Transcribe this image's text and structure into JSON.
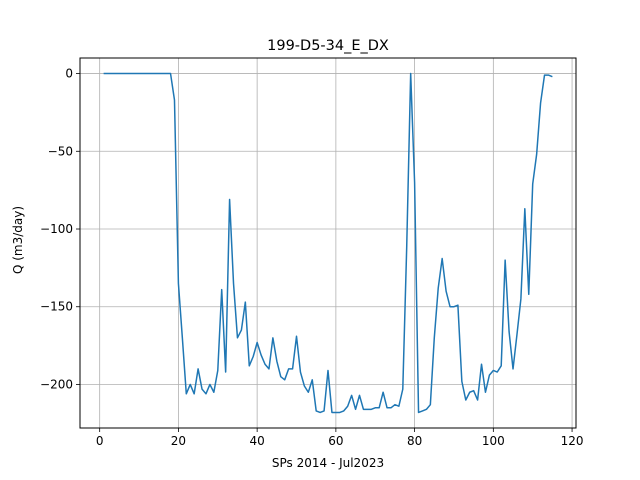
{
  "chart_data": {
    "type": "line",
    "title": "199-D5-34_E_DX",
    "xlabel": "SPs 2014 - Jul2023",
    "ylabel": "Q (m3/day)",
    "xlim": [
      -5,
      121
    ],
    "ylim": [
      -228,
      10
    ],
    "xticks": [
      0,
      20,
      40,
      60,
      80,
      100,
      120
    ],
    "yticks": [
      0,
      -50,
      -100,
      -150,
      -200
    ],
    "grid": true,
    "colors": {
      "line": "#1f77b4",
      "grid": "#b0b0b0"
    },
    "series": [
      {
        "x": [
          1,
          2,
          3,
          4,
          5,
          6,
          7,
          8,
          9,
          10,
          11,
          12,
          13,
          14,
          15,
          16,
          17,
          18,
          19,
          20,
          21,
          22,
          23,
          24,
          25,
          26,
          27,
          28,
          29,
          30,
          31,
          32,
          33,
          34,
          35,
          36,
          37,
          38,
          39,
          40,
          41,
          42,
          43,
          44,
          45,
          46,
          47,
          48,
          49,
          50,
          51,
          52,
          53,
          54,
          55,
          56,
          57,
          58,
          59,
          60,
          61,
          62,
          63,
          64,
          65,
          66,
          67,
          68,
          69,
          70,
          71,
          72,
          73,
          74,
          75,
          76,
          77,
          78,
          79,
          80,
          81,
          82,
          83,
          84,
          85,
          86,
          87,
          88,
          89,
          90,
          91,
          92,
          93,
          94,
          95,
          96,
          97,
          98,
          99,
          100,
          101,
          102,
          103,
          104,
          105,
          106,
          107,
          108,
          109,
          110,
          111,
          112,
          113,
          114,
          115
        ],
        "y": [
          0,
          0,
          0,
          0,
          0,
          0,
          0,
          0,
          0,
          0,
          0,
          0,
          0,
          0,
          0,
          0,
          0,
          0,
          -17,
          -135,
          -170,
          -206,
          -200,
          -206,
          -190,
          -203,
          -206,
          -200,
          -205,
          -191,
          -139,
          -192,
          -81,
          -135,
          -170,
          -165,
          -147,
          -188,
          -182,
          -173,
          -181,
          -187,
          -190,
          -170,
          -185,
          -195,
          -197,
          -190,
          -190,
          -169,
          -192,
          -201,
          -205,
          -197,
          -217,
          -218,
          -217,
          -191,
          -218,
          -218,
          -218,
          -217,
          -214,
          -207,
          -216,
          -207,
          -216,
          -216,
          -216,
          -215,
          -215,
          -205,
          -215,
          -215,
          -213,
          -214,
          -203,
          -111,
          0,
          -70,
          -218,
          -217,
          -216,
          -213,
          -170,
          -138,
          -119,
          -140,
          -150,
          -150,
          -149,
          -198,
          -210,
          -205,
          -204,
          -210,
          -187,
          -205,
          -194,
          -191,
          -192,
          -188,
          -120,
          -166,
          -190,
          -168,
          -145,
          -87,
          -142,
          -71,
          -52,
          -19,
          -1,
          -1,
          -2
        ]
      }
    ]
  }
}
